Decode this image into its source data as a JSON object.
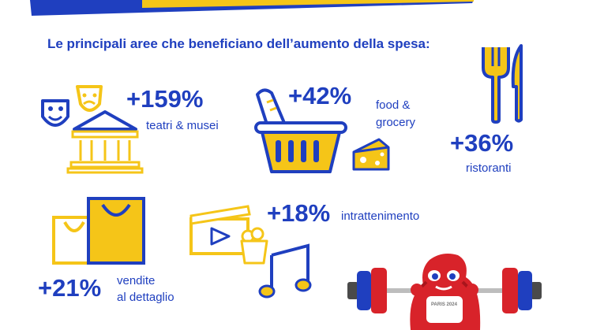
{
  "title": "Le principali aree che beneficiano dell’aumento della spesa:",
  "colors": {
    "blue": "#1f3fbf",
    "yellow": "#f5c518",
    "red": "#d8232a",
    "dark_red": "#a8151c"
  },
  "items": [
    {
      "id": "culture",
      "value": "+159%",
      "label_lines": [
        "teatri & musei"
      ],
      "icons": [
        "theatre-masks-icon",
        "museum-building-icon"
      ]
    },
    {
      "id": "food",
      "value": "+42%",
      "label_lines": [
        "food &",
        "grocery"
      ],
      "icons": [
        "shopping-basket-icon",
        "bread-icon",
        "cheese-icon"
      ]
    },
    {
      "id": "restaurants",
      "value": "+36%",
      "label_lines": [
        "ristoranti"
      ],
      "icons": [
        "fork-knife-icon"
      ]
    },
    {
      "id": "retail",
      "value": "+21%",
      "label_lines": [
        "vendite",
        "al dettaglio"
      ],
      "icons": [
        "shopping-bags-icon"
      ]
    },
    {
      "id": "entertainment",
      "value": "+18%",
      "label_lines": [
        "intrattenimento"
      ],
      "icons": [
        "clapperboard-icon",
        "popcorn-icon",
        "music-note-icon"
      ]
    }
  ],
  "mascot": {
    "name": "phryge-mascot-weightlifting",
    "badge_text": "PARIS 2024"
  }
}
